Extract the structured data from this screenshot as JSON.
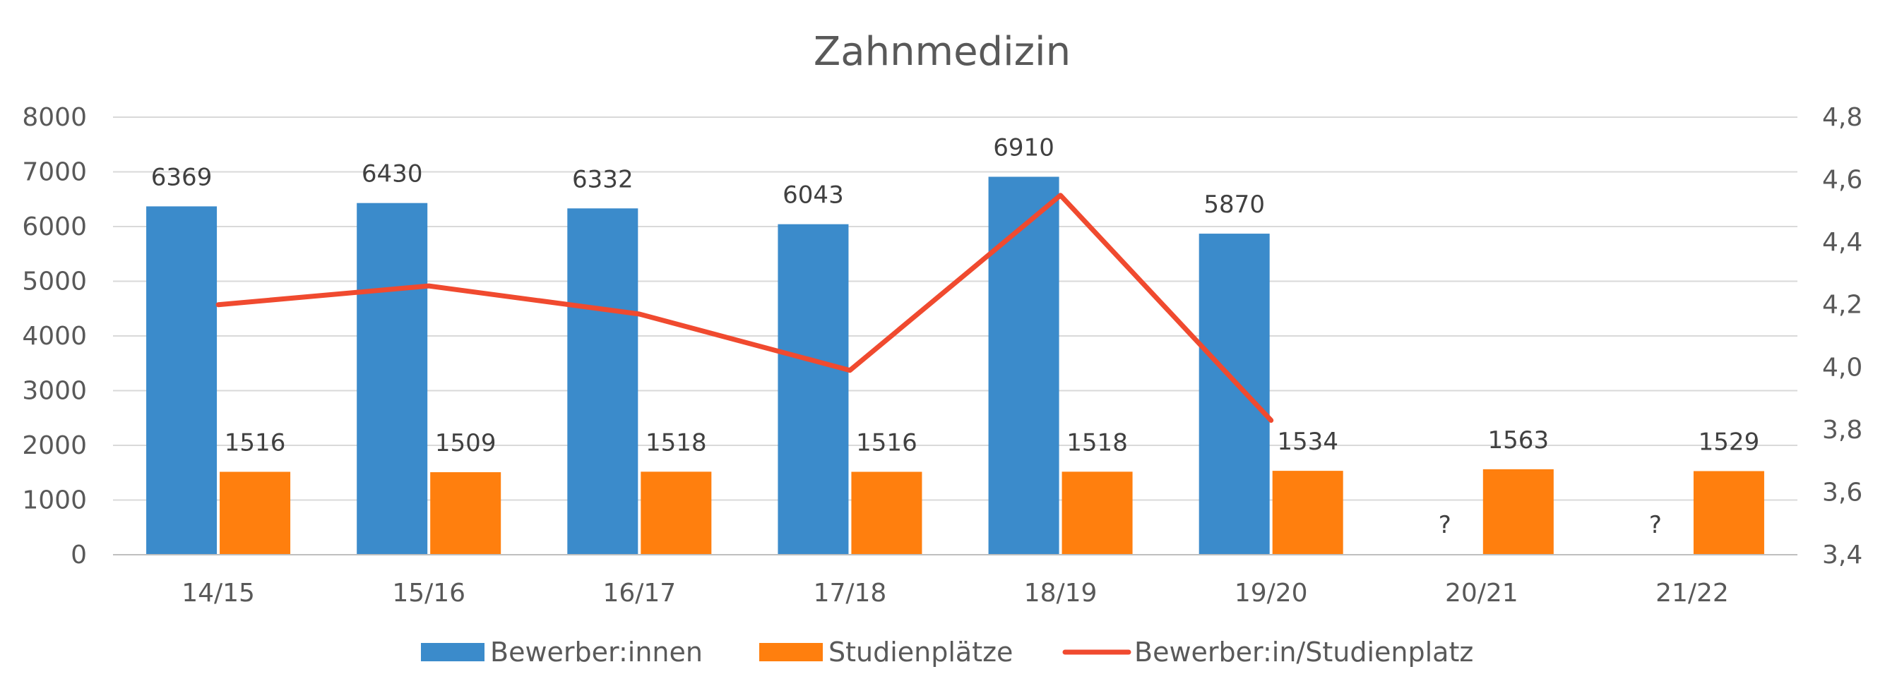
{
  "chart_data": {
    "type": "bar",
    "title": "Zahnmedizin",
    "xlabel": "",
    "ylabel": "",
    "categories": [
      "14/15",
      "15/16",
      "16/17",
      "17/18",
      "18/19",
      "19/20",
      "20/21",
      "21/22"
    ],
    "series": [
      {
        "name": "Bewerber:innen",
        "type": "bar",
        "axis": "left",
        "color": "#3b8bcb",
        "values": [
          6369,
          6430,
          6332,
          6043,
          6910,
          5870,
          null,
          null
        ],
        "labels": [
          "6369",
          "6430",
          "6332",
          "6043",
          "6910",
          "5870",
          "?",
          "?"
        ]
      },
      {
        "name": "Studienplätze",
        "type": "bar",
        "axis": "left",
        "color": "#ff7f0e",
        "values": [
          1516,
          1509,
          1518,
          1516,
          1518,
          1534,
          1563,
          1529
        ],
        "labels": [
          "1516",
          "1509",
          "1518",
          "1516",
          "1518",
          "1534",
          "1563",
          "1529"
        ]
      },
      {
        "name": "Bewerber:in/Studienplatz",
        "type": "line",
        "axis": "right",
        "color": "#f04a2f",
        "values": [
          4.2,
          4.26,
          4.17,
          3.99,
          4.55,
          3.83,
          null,
          null
        ]
      }
    ],
    "ylim": [
      0,
      8000
    ],
    "yticks": [
      "0",
      "1000",
      "2000",
      "3000",
      "4000",
      "5000",
      "6000",
      "7000",
      "8000"
    ],
    "y2lim": [
      3.4,
      4.8
    ],
    "y2ticks": [
      "3,4",
      "3,6",
      "3,8",
      "4,0",
      "4,2",
      "4,4",
      "4,6",
      "4,8"
    ],
    "grid": true,
    "legend_position": "bottom"
  }
}
